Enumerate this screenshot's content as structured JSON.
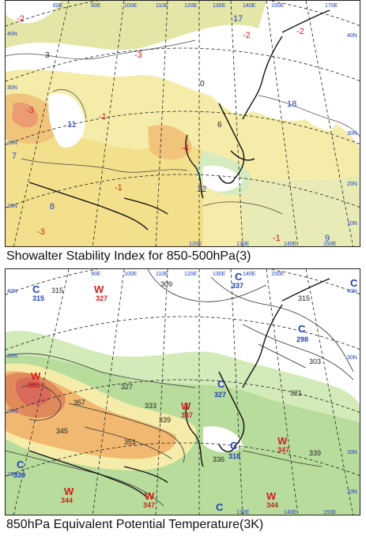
{
  "panels": [
    {
      "caption": "Showalter Stability Index for 850-500hPa(3)",
      "top_lon_labels": [
        "60E",
        "90E",
        "100E",
        "110E",
        "120E",
        "130E",
        "140E",
        "150E",
        "170E"
      ],
      "top_lat_labels": [
        "40N",
        "30N",
        "20N",
        "10N"
      ],
      "bottom_lon_labels": [
        "120E",
        "130E",
        "140E",
        "150E"
      ],
      "right_lat_labels": [
        "40N",
        "30N",
        "20N",
        "10N"
      ],
      "contour_values": [
        {
          "text": "-2",
          "color": "#d02020"
        },
        {
          "text": "-3",
          "color": "#d02020"
        },
        {
          "text": "-4",
          "color": "#d02020"
        },
        {
          "text": "-3",
          "color": "#d02020"
        },
        {
          "text": "-1",
          "color": "#d02020"
        },
        {
          "text": "-1",
          "color": "#d02020"
        },
        {
          "text": "-3",
          "color": "#d02020"
        },
        {
          "text": "-1",
          "color": "#d02020"
        },
        {
          "text": "-2",
          "color": "#d02020"
        },
        {
          "text": "-2",
          "color": "#d02020"
        },
        {
          "text": "17",
          "color": "#2040c0"
        },
        {
          "text": "18",
          "color": "#2040c0"
        },
        {
          "text": "11",
          "color": "#2040c0"
        },
        {
          "text": "12",
          "color": "#2040c0"
        },
        {
          "text": "8",
          "color": "#2040c0"
        },
        {
          "text": "9",
          "color": "#2040c0"
        },
        {
          "text": "7",
          "color": "#2040c0"
        },
        {
          "text": "3",
          "color": "#222222"
        },
        {
          "text": "6",
          "color": "#222222"
        },
        {
          "text": "0",
          "color": "#222222"
        }
      ]
    },
    {
      "caption": "850hPa Equivalent Potential Temperature(3K)",
      "top_lon_labels": [
        "90E",
        "100E",
        "110E",
        "120E",
        "130E",
        "140E",
        "150E"
      ],
      "top_lat_labels": [
        "40N",
        "30N",
        "20N",
        "10N"
      ],
      "right_lat_labels": [
        "40N",
        "30N",
        "20N",
        "10N"
      ],
      "bottom_lon_labels": [
        "130E",
        "140E",
        "150E"
      ],
      "pressure_marks": [
        {
          "text": "W",
          "value": "327",
          "color": "#d02020"
        },
        {
          "text": "W",
          "value": "363",
          "color": "#d02020"
        },
        {
          "text": "W",
          "value": "347",
          "color": "#d02020"
        },
        {
          "text": "W",
          "value": "347",
          "color": "#d02020"
        },
        {
          "text": "W",
          "value": "344",
          "color": "#d02020"
        },
        {
          "text": "W",
          "value": "344",
          "color": "#d02020"
        },
        {
          "text": "W",
          "value": "347",
          "color": "#d02020"
        },
        {
          "text": "C",
          "value": "315",
          "color": "#2040c0"
        },
        {
          "text": "C",
          "value": "298",
          "color": "#2040c0"
        },
        {
          "text": "C",
          "value": "327",
          "color": "#2040c0"
        },
        {
          "text": "C",
          "value": "339",
          "color": "#2040c0"
        },
        {
          "text": "C",
          "value": "318",
          "color": "#2040c0"
        },
        {
          "text": "C",
          "value": "337",
          "color": "#2040c0"
        },
        {
          "text": "C",
          "value": "",
          "color": "#2040c0"
        },
        {
          "text": "C",
          "value": "",
          "color": "#2040c0"
        }
      ],
      "isotherm_values": [
        "315",
        "309",
        "327",
        "333",
        "339",
        "345",
        "351",
        "357",
        "339",
        "303",
        "321",
        "336",
        "315"
      ]
    }
  ],
  "colors": {
    "map_bg": "#ffffff",
    "light_yellow": "#f6ecaa",
    "yellow_green": "#e4e6a8",
    "green": "#b8dc9c",
    "light_green": "#d2ebb8",
    "orange": "#f0b870",
    "dark_orange": "#e08a5c",
    "red_core": "#d86a5a",
    "coast": "#111111",
    "grid": "#222222"
  }
}
